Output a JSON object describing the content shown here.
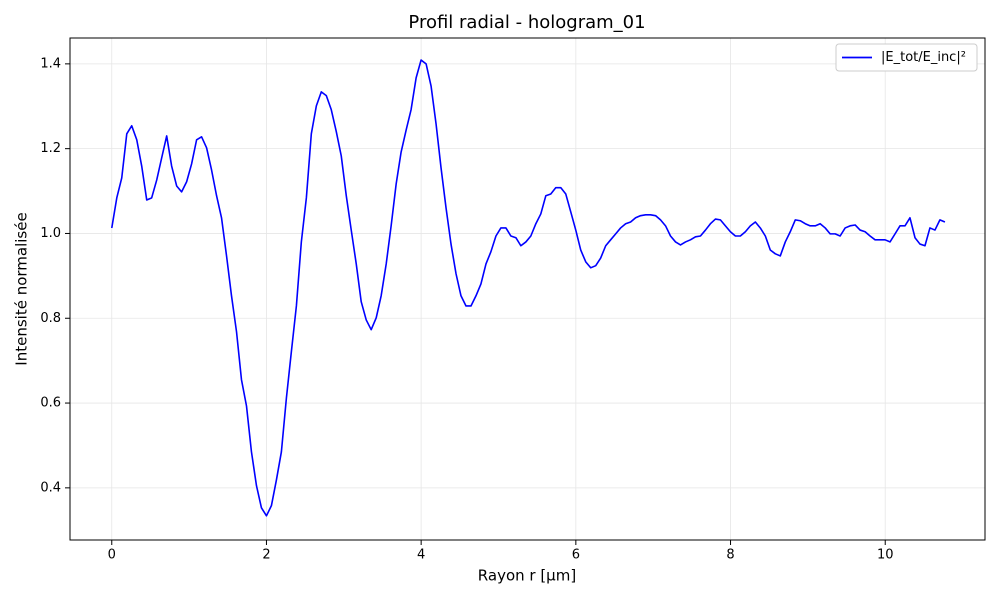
{
  "chart_data": {
    "type": "line",
    "title": "Profil radial - hologram_01",
    "x_label": "Rayon r [µm]",
    "y_label": "Intensité normalisée",
    "x": [
      0,
      0.065,
      0.129,
      0.194,
      0.258,
      0.323,
      0.387,
      0.452,
      0.516,
      0.581,
      0.645,
      0.71,
      0.774,
      0.839,
      0.903,
      0.968,
      1.032,
      1.097,
      1.161,
      1.226,
      1.29,
      1.355,
      1.419,
      1.484,
      1.548,
      1.613,
      1.677,
      1.742,
      1.806,
      1.871,
      1.935,
      2.0,
      2.064,
      2.129,
      2.193,
      2.258,
      2.322,
      2.387,
      2.451,
      2.516,
      2.58,
      2.645,
      2.709,
      2.774,
      2.838,
      2.903,
      2.967,
      3.032,
      3.096,
      3.161,
      3.225,
      3.29,
      3.354,
      3.419,
      3.483,
      3.548,
      3.612,
      3.677,
      3.741,
      3.806,
      3.87,
      3.935,
      3.999,
      4.064,
      4.128,
      4.193,
      4.257,
      4.322,
      4.386,
      4.451,
      4.515,
      4.58,
      4.644,
      4.709,
      4.773,
      4.838,
      4.902,
      4.967,
      5.031,
      5.096,
      5.16,
      5.225,
      5.289,
      5.354,
      5.418,
      5.483,
      5.547,
      5.612,
      5.676,
      5.741,
      5.805,
      5.87,
      5.934,
      5.999,
      6.063,
      6.128,
      6.192,
      6.257,
      6.321,
      6.386,
      6.45,
      6.515,
      6.579,
      6.644,
      6.708,
      6.773,
      6.837,
      6.902,
      6.966,
      7.031,
      7.095,
      7.16,
      7.224,
      7.289,
      7.353,
      7.418,
      7.482,
      7.547,
      7.611,
      7.676,
      7.74,
      7.805,
      7.869,
      7.934,
      7.998,
      8.063,
      8.127,
      8.192,
      8.256,
      8.321,
      8.385,
      8.45,
      8.514,
      8.579,
      8.643,
      8.708,
      8.772,
      8.837,
      8.901,
      8.966,
      9.03,
      9.095,
      9.159,
      9.224,
      9.288,
      9.353,
      9.417,
      9.482,
      9.546,
      9.611,
      9.675,
      9.74,
      9.804,
      9.869,
      9.933,
      9.998,
      10.062,
      10.127,
      10.191,
      10.256,
      10.32,
      10.385,
      10.449,
      10.514,
      10.578,
      10.643,
      10.707,
      10.772
    ],
    "series": [
      {
        "name": "|E_tot/E_inc|²",
        "color": "#0000ff",
        "values": [
          1.013,
          1.084,
          1.131,
          1.235,
          1.254,
          1.221,
          1.159,
          1.079,
          1.084,
          1.126,
          1.178,
          1.23,
          1.159,
          1.112,
          1.098,
          1.122,
          1.164,
          1.221,
          1.228,
          1.202,
          1.15,
          1.089,
          1.037,
          0.947,
          0.853,
          0.768,
          0.655,
          0.593,
          0.485,
          0.405,
          0.353,
          0.334,
          0.358,
          0.419,
          0.485,
          0.612,
          0.721,
          0.829,
          0.98,
          1.084,
          1.235,
          1.301,
          1.334,
          1.325,
          1.292,
          1.24,
          1.183,
          1.089,
          1.008,
          0.928,
          0.839,
          0.796,
          0.773,
          0.801,
          0.853,
          0.928,
          1.018,
          1.117,
          1.192,
          1.244,
          1.292,
          1.367,
          1.409,
          1.4,
          1.348,
          1.258,
          1.155,
          1.06,
          0.975,
          0.905,
          0.853,
          0.829,
          0.829,
          0.853,
          0.881,
          0.928,
          0.957,
          0.994,
          1.013,
          1.013,
          0.994,
          0.99,
          0.971,
          0.98,
          0.994,
          1.023,
          1.046,
          1.089,
          1.093,
          1.108,
          1.108,
          1.093,
          1.051,
          1.008,
          0.961,
          0.933,
          0.919,
          0.924,
          0.942,
          0.971,
          0.985,
          0.999,
          1.013,
          1.023,
          1.027,
          1.037,
          1.042,
          1.044,
          1.044,
          1.042,
          1.032,
          1.018,
          0.994,
          0.98,
          0.973,
          0.98,
          0.985,
          0.992,
          0.994,
          1.008,
          1.023,
          1.034,
          1.032,
          1.018,
          1.004,
          0.994,
          0.994,
          1.004,
          1.018,
          1.027,
          1.013,
          0.994,
          0.961,
          0.952,
          0.947,
          0.98,
          1.004,
          1.032,
          1.03,
          1.023,
          1.018,
          1.018,
          1.023,
          1.013,
          0.999,
          0.999,
          0.994,
          1.013,
          1.018,
          1.02,
          1.008,
          1.004,
          0.994,
          0.985,
          0.985,
          0.985,
          0.98,
          0.999,
          1.018,
          1.018,
          1.037,
          0.99,
          0.975,
          0.971,
          1.013,
          1.008,
          1.032,
          1.027
        ]
      }
    ],
    "xlim": [
      -0.54,
      11.29
    ],
    "ylim": [
      0.277,
      1.461
    ],
    "xticks": [
      0,
      2,
      4,
      6,
      8,
      10
    ],
    "yticks": [
      0.4,
      0.6,
      0.8,
      {
        "value": 1,
        "label": "1.0"
      },
      1.2,
      1.4
    ],
    "grid": true,
    "legend": "upper right"
  }
}
